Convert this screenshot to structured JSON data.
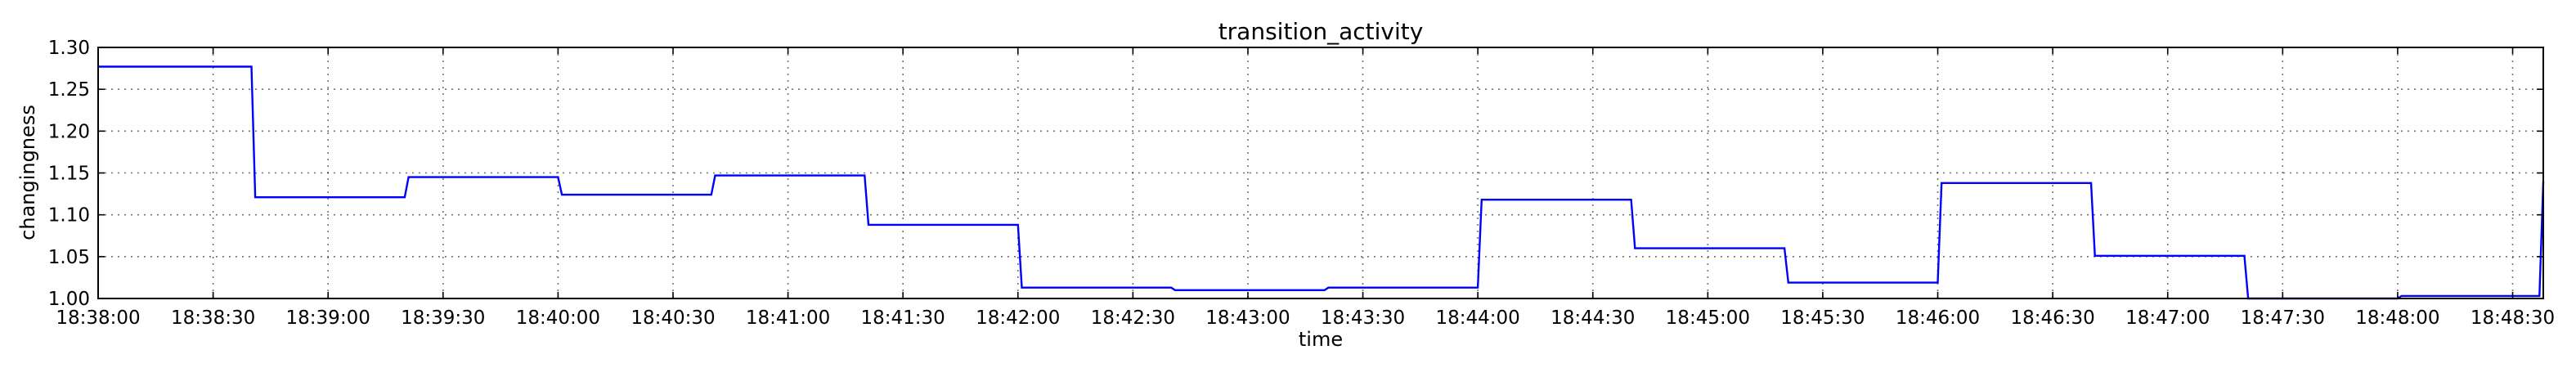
{
  "chart_data": {
    "type": "line",
    "title": "transition_activity",
    "xlabel": "time",
    "ylabel": "changingness",
    "x_ticks": [
      "18:38:00",
      "18:38:30",
      "18:39:00",
      "18:39:30",
      "18:40:00",
      "18:40:30",
      "18:41:00",
      "18:41:30",
      "18:42:00",
      "18:42:30",
      "18:43:00",
      "18:43:30",
      "18:44:00",
      "18:44:30",
      "18:45:00",
      "18:45:30",
      "18:46:00",
      "18:46:30",
      "18:47:00",
      "18:47:30",
      "18:48:00",
      "18:48:30"
    ],
    "y_ticks": [
      "1.00",
      "1.05",
      "1.10",
      "1.15",
      "1.20",
      "1.25",
      "1.30"
    ],
    "xlim": [
      "18:38:00",
      "18:48:38"
    ],
    "ylim": [
      1.0,
      1.3
    ],
    "grid": true,
    "color": "#0000ff",
    "x": [
      "18:38:00",
      "18:38:20",
      "18:38:21",
      "18:38:40",
      "18:38:41",
      "18:39:00",
      "18:39:01",
      "18:39:20",
      "18:39:21",
      "18:39:40",
      "18:39:41",
      "18:40:00",
      "18:40:01",
      "18:40:20",
      "18:40:21",
      "18:40:40",
      "18:40:41",
      "18:41:00",
      "18:41:01",
      "18:41:20",
      "18:41:21",
      "18:41:40",
      "18:41:41",
      "18:42:00",
      "18:42:01",
      "18:42:20",
      "18:42:21",
      "18:42:40",
      "18:42:41",
      "18:43:00",
      "18:43:01",
      "18:43:20",
      "18:43:21",
      "18:43:40",
      "18:43:41",
      "18:44:00",
      "18:44:01",
      "18:44:20",
      "18:44:21",
      "18:44:40",
      "18:44:41",
      "18:45:00",
      "18:45:01",
      "18:45:20",
      "18:45:21",
      "18:45:40",
      "18:45:41",
      "18:46:00",
      "18:46:01",
      "18:46:20",
      "18:46:21",
      "18:46:40",
      "18:46:41",
      "18:47:00",
      "18:47:01",
      "18:47:20",
      "18:47:21",
      "18:47:40",
      "18:47:41",
      "18:48:00",
      "18:48:01",
      "18:48:20",
      "18:48:21",
      "18:48:37",
      "18:48:38"
    ],
    "values": [
      1.277,
      1.277,
      1.277,
      1.277,
      1.121,
      1.121,
      1.121,
      1.121,
      1.145,
      1.145,
      1.145,
      1.145,
      1.124,
      1.124,
      1.124,
      1.124,
      1.147,
      1.147,
      1.147,
      1.147,
      1.088,
      1.088,
      1.088,
      1.088,
      1.013,
      1.013,
      1.013,
      1.013,
      1.01,
      1.01,
      1.01,
      1.01,
      1.013,
      1.013,
      1.013,
      1.013,
      1.118,
      1.118,
      1.118,
      1.118,
      1.06,
      1.06,
      1.06,
      1.06,
      1.019,
      1.019,
      1.019,
      1.019,
      1.138,
      1.138,
      1.138,
      1.138,
      1.051,
      1.051,
      1.051,
      1.051,
      1.0,
      1.0,
      1.0,
      1.0,
      1.003,
      1.003,
      1.003,
      1.003,
      1.14
    ]
  }
}
